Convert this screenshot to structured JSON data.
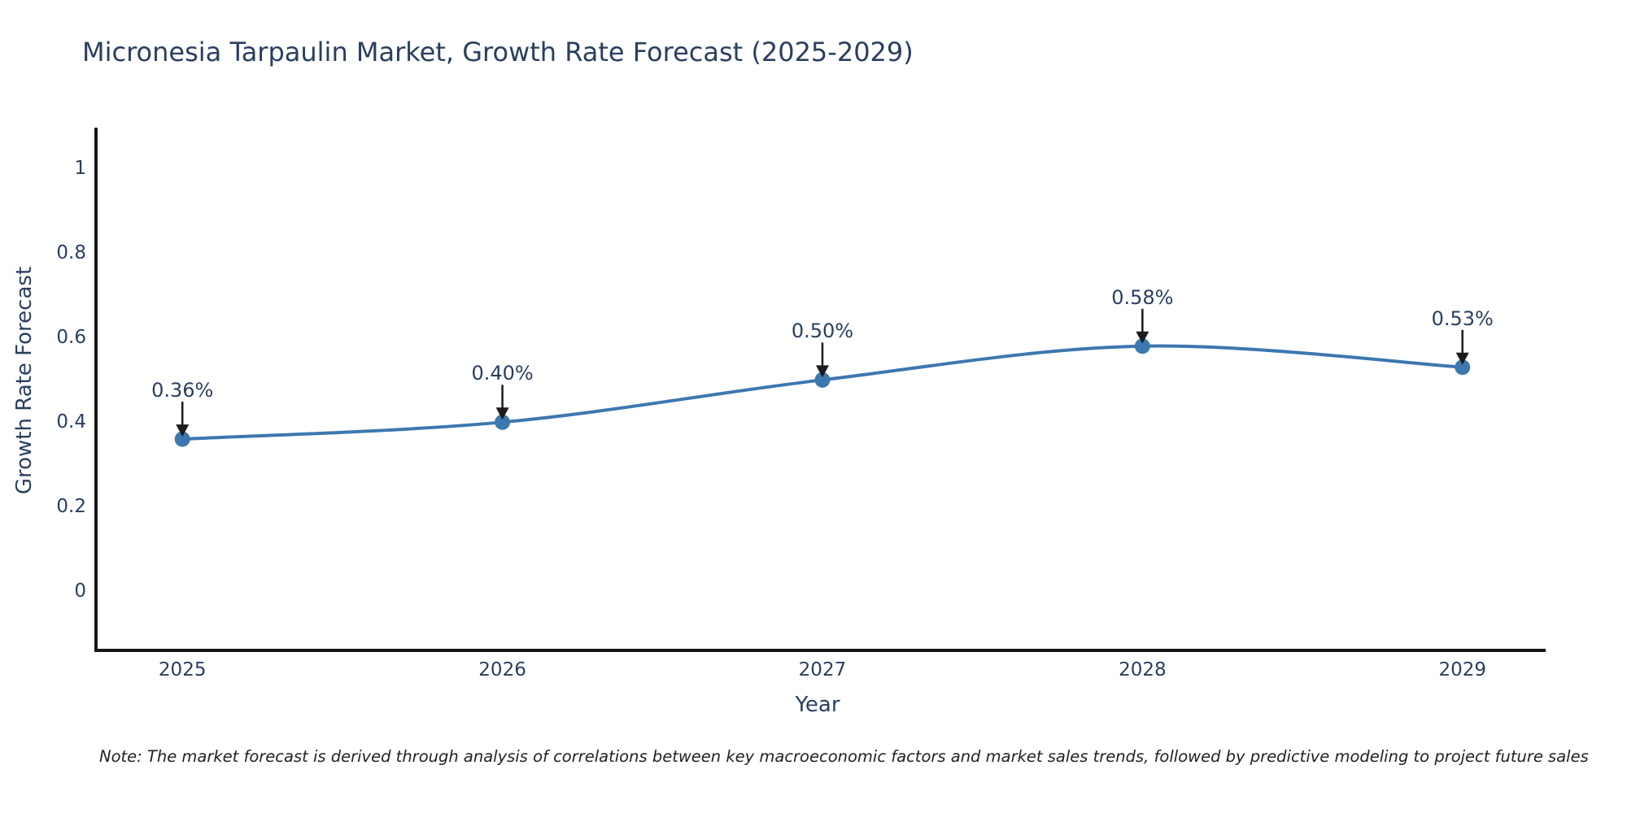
{
  "title": "Micronesia Tarpaulin Market, Growth Rate Forecast (2025-2029)",
  "note": "Note: The market forecast is derived through analysis of correlations between key macroeconomic factors and market sales trends, followed by predictive modeling to project future sales",
  "colors": {
    "line": "#3c78b0",
    "marker": "#3c78b0",
    "text": "#2a3f5f",
    "axis": "#161616",
    "arrow": "#1c1c1c",
    "background": "#ffffff"
  },
  "chart_data": {
    "type": "line",
    "title": "Micronesia Tarpaulin Market, Growth Rate Forecast (2025-2029)",
    "x": [
      2025,
      2026,
      2027,
      2028,
      2029
    ],
    "series": [
      {
        "name": "Growth Rate Forecast",
        "values": [
          0.36,
          0.4,
          0.5,
          0.58,
          0.53
        ],
        "point_labels": [
          "0.36%",
          "0.40%",
          "0.50%",
          "0.58%",
          "0.53%"
        ]
      }
    ],
    "xlabel": "Year",
    "ylabel": "Growth Rate Forecast",
    "yticks": [
      0,
      0.2,
      0.4,
      0.6,
      0.8,
      1
    ],
    "ytick_labels": [
      "0",
      "0.2",
      "0.4",
      "0.6",
      "0.8",
      "1"
    ],
    "xtick_labels": [
      "2025",
      "2026",
      "2027",
      "2028",
      "2029"
    ],
    "xlim": [
      2024.73,
      2029.26
    ],
    "ylim": [
      -0.14,
      1.097
    ],
    "grid": false,
    "legend": false,
    "line_shape": "spline",
    "markers": true,
    "annotation_arrows": true
  }
}
